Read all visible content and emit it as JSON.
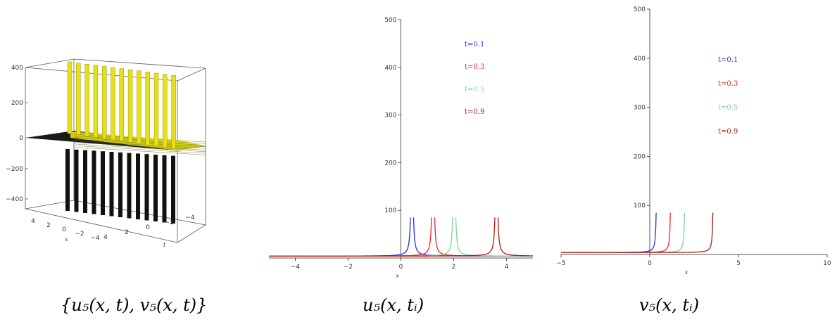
{
  "captions": {
    "left": "{u₅(x, t), v₅(x, t)}",
    "middle": "u₅(x, tᵢ)",
    "right": "v₅(x, tᵢ)"
  },
  "colors": {
    "blue": "#2a2af0",
    "red": "#e8262a",
    "green": "#7fd49a",
    "darkred": "#b01818",
    "yellow": "#e6e01a",
    "black": "#111111"
  },
  "chart_data": [
    {
      "type": "surface",
      "title": "",
      "z_ticks": [
        "400",
        "200",
        "0",
        "−200",
        "−400"
      ],
      "x_ticks": [
        "4",
        "2",
        "0",
        "−2",
        "−4"
      ],
      "t_ticks": [
        "4",
        "2",
        "0",
        "−2",
        "−4"
      ],
      "xlabel": "x",
      "ylabel": "t"
    },
    {
      "type": "line",
      "title": "",
      "xlabel": "x",
      "ylabel": "",
      "xlim": [
        -5,
        5
      ],
      "ylim": [
        0,
        500
      ],
      "x_ticks": [
        -4,
        -2,
        0,
        2,
        4
      ],
      "y_ticks": [
        100,
        200,
        300,
        400,
        500
      ],
      "x_tick_labels": [
        "−4",
        "−2",
        "0",
        "2",
        "4"
      ],
      "poles": [
        0.42,
        1.22,
        2.02,
        3.62
      ],
      "series": [
        {
          "name": "t=0.1",
          "color": "#2a2af0",
          "pole": 0.42,
          "sides": "both"
        },
        {
          "name": "t=0.3",
          "color": "#e8262a",
          "pole": 1.22,
          "sides": "both"
        },
        {
          "name": "t=0.5",
          "color": "#7fd49a",
          "pole": 2.02,
          "sides": "both"
        },
        {
          "name": "t=0.9",
          "color": "#b01818",
          "pole": 3.62,
          "sides": "both"
        }
      ]
    },
    {
      "type": "line",
      "title": "",
      "xlabel": "x",
      "ylabel": "",
      "xlim": [
        -5,
        10
      ],
      "ylim": [
        0,
        500
      ],
      "x_ticks": [
        -5,
        0,
        5,
        10
      ],
      "y_ticks": [
        100,
        200,
        300,
        400,
        500
      ],
      "x_tick_labels": [
        "−5",
        "0",
        "5",
        "10"
      ],
      "series": [
        {
          "name": "t=0.1",
          "color": "#2a2af0",
          "pole": 0.42,
          "sides": "left"
        },
        {
          "name": "t=0.3",
          "color": "#e8262a",
          "pole": 1.22,
          "sides": "left"
        },
        {
          "name": "t=0.5",
          "color": "#7fd49a",
          "pole": 2.02,
          "sides": "left"
        },
        {
          "name": "t=0.9",
          "color": "#b01818",
          "pole": 3.62,
          "sides": "left"
        }
      ]
    }
  ]
}
